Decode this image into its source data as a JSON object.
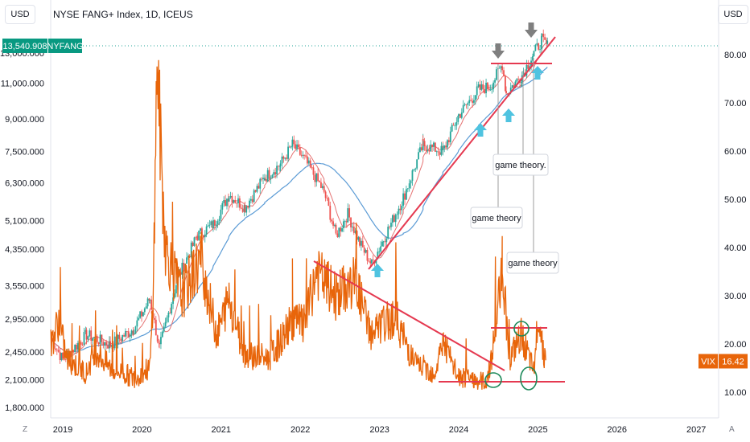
{
  "header": {
    "title": "NYSE FANG+ Index, 1D, ICEUS",
    "currency_left": "USD",
    "currency_right": "USD",
    "corner_left": "Z",
    "corner_right": "A"
  },
  "badges": {
    "price_value": "13,540.908",
    "price_symbol": "NYFANG",
    "vix_symbol": "VIX",
    "vix_value": "16.42"
  },
  "annotations": {
    "label_1": "game theory.",
    "label_2": "game theory",
    "label_3": "game theory"
  },
  "colors": {
    "price": "#131722",
    "up": "#26a69a",
    "down": "#ef5350",
    "ma_fast": "#e57373",
    "ma_slow": "#5b9bd5",
    "vix": "#e8650a",
    "trendline": "#e53950",
    "arrow_up": "#4fc3e0",
    "arrow_down": "#7f7f7f",
    "circle": "#1e8a5a",
    "badge_price": "#089981",
    "badge_vix": "#e8650a"
  },
  "chart_data": [
    {
      "type": "candlestick",
      "title": "NYSE FANG+ Index, 1D, ICEUS",
      "scale": "log",
      "y_ticks": [
        "1,800.000",
        "2,100.000",
        "2,450.000",
        "2,950.000",
        "3,550.000",
        "4,350.000",
        "5,100.000",
        "6,300.000",
        "7,500.000",
        "9,000.000",
        "11,000.000",
        "13,000.000"
      ],
      "y_tick_values": [
        1800,
        2100,
        2450,
        2950,
        3550,
        4350,
        5100,
        6300,
        7500,
        9000,
        11000,
        13000
      ],
      "x_ticks": [
        "2019",
        "2020",
        "2021",
        "2022",
        "2023",
        "2024",
        "2025",
        "2026",
        "2027"
      ],
      "x_tick_years": [
        2019,
        2020,
        2021,
        2022,
        2023,
        2024,
        2025,
        2026,
        2027
      ],
      "last_value": 13540.908,
      "series_points": [
        {
          "year": 2018.85,
          "value": 2650
        },
        {
          "year": 2019.0,
          "value": 2350
        },
        {
          "year": 2019.3,
          "value": 2700
        },
        {
          "year": 2019.6,
          "value": 2550
        },
        {
          "year": 2019.9,
          "value": 2800
        },
        {
          "year": 2020.1,
          "value": 3300
        },
        {
          "year": 2020.22,
          "value": 2500
        },
        {
          "year": 2020.45,
          "value": 3700
        },
        {
          "year": 2020.7,
          "value": 4700
        },
        {
          "year": 2020.9,
          "value": 5000
        },
        {
          "year": 2021.1,
          "value": 5900
        },
        {
          "year": 2021.3,
          "value": 5500
        },
        {
          "year": 2021.55,
          "value": 6500
        },
        {
          "year": 2021.75,
          "value": 7000
        },
        {
          "year": 2021.9,
          "value": 7800
        },
        {
          "year": 2022.05,
          "value": 7200
        },
        {
          "year": 2022.3,
          "value": 6000
        },
        {
          "year": 2022.45,
          "value": 4700
        },
        {
          "year": 2022.6,
          "value": 5300
        },
        {
          "year": 2022.75,
          "value": 4500
        },
        {
          "year": 2022.9,
          "value": 4000
        },
        {
          "year": 2023.05,
          "value": 4600
        },
        {
          "year": 2023.3,
          "value": 5800
        },
        {
          "year": 2023.55,
          "value": 7800
        },
        {
          "year": 2023.8,
          "value": 7500
        },
        {
          "year": 2024.0,
          "value": 9200
        },
        {
          "year": 2024.25,
          "value": 10600
        },
        {
          "year": 2024.4,
          "value": 10800
        },
        {
          "year": 2024.55,
          "value": 12200
        },
        {
          "year": 2024.6,
          "value": 10400
        },
        {
          "year": 2024.8,
          "value": 11500
        },
        {
          "year": 2024.95,
          "value": 13000
        },
        {
          "year": 2025.05,
          "value": 14000
        },
        {
          "year": 2025.12,
          "value": 13540.908
        }
      ]
    },
    {
      "type": "line",
      "series": [
        {
          "name": "VIX",
          "points": [
            {
              "year": 2018.85,
              "value": 20
            },
            {
              "year": 2018.95,
              "value": 25
            },
            {
              "year": 2019.05,
              "value": 17
            },
            {
              "year": 2019.3,
              "value": 14
            },
            {
              "year": 2019.4,
              "value": 19
            },
            {
              "year": 2019.6,
              "value": 15
            },
            {
              "year": 2019.9,
              "value": 13
            },
            {
              "year": 2020.1,
              "value": 15
            },
            {
              "year": 2020.19,
              "value": 82
            },
            {
              "year": 2020.3,
              "value": 40
            },
            {
              "year": 2020.5,
              "value": 30
            },
            {
              "year": 2020.75,
              "value": 38
            },
            {
              "year": 2020.95,
              "value": 22
            },
            {
              "year": 2021.1,
              "value": 30
            },
            {
              "year": 2021.3,
              "value": 18
            },
            {
              "year": 2021.6,
              "value": 17
            },
            {
              "year": 2021.9,
              "value": 25
            },
            {
              "year": 2022.05,
              "value": 24
            },
            {
              "year": 2022.2,
              "value": 35
            },
            {
              "year": 2022.45,
              "value": 30
            },
            {
              "year": 2022.7,
              "value": 33
            },
            {
              "year": 2022.9,
              "value": 22
            },
            {
              "year": 2023.2,
              "value": 26
            },
            {
              "year": 2023.45,
              "value": 16
            },
            {
              "year": 2023.7,
              "value": 14
            },
            {
              "year": 2023.8,
              "value": 21
            },
            {
              "year": 2024.0,
              "value": 13
            },
            {
              "year": 2024.35,
              "value": 12
            },
            {
              "year": 2024.55,
              "value": 38
            },
            {
              "year": 2024.65,
              "value": 17
            },
            {
              "year": 2024.8,
              "value": 22
            },
            {
              "year": 2024.95,
              "value": 14
            },
            {
              "year": 2025.0,
              "value": 27
            },
            {
              "year": 2025.1,
              "value": 16.42
            }
          ]
        }
      ],
      "right_axis_ticks": [
        "10.00",
        "20.00",
        "30.00",
        "40.00",
        "50.00",
        "60.00",
        "70.00",
        "80.00"
      ],
      "right_axis_values": [
        10,
        20,
        30,
        40,
        50,
        60,
        70,
        80
      ],
      "last_value": 16.42
    }
  ]
}
